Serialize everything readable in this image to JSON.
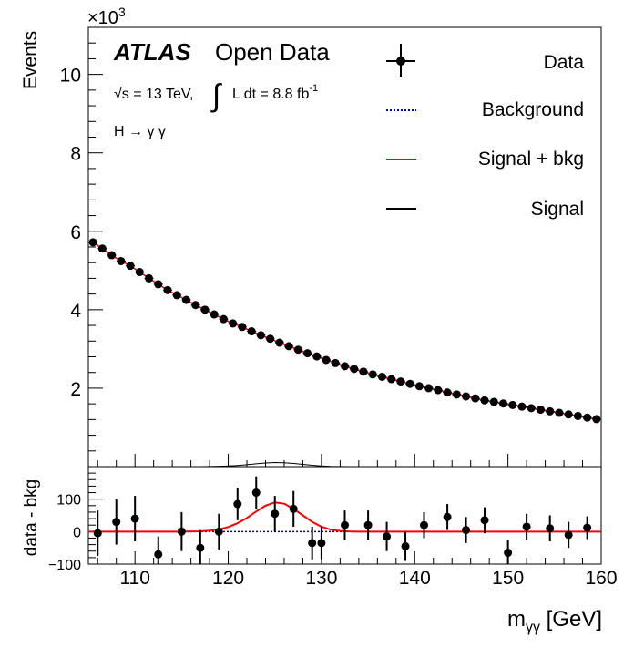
{
  "chart_data": [
    {
      "type": "scatter",
      "panel": "main",
      "ylabel": "Events",
      "y_multiplier_label": "×10",
      "y_multiplier_exp": "3",
      "xlim": [
        105,
        160
      ],
      "ylim": [
        0,
        11200
      ],
      "y_ticks": [
        2,
        4,
        6,
        8,
        10
      ],
      "atlas_label": "ATLAS",
      "open_data_label": "Open Data",
      "energy_label": "√s = 13 TeV,",
      "lumi_label": "L dt = 8.8 fb",
      "lumi_exp": "-1",
      "process_label": "H → γ γ",
      "legend": [
        "Data",
        "Background",
        "Signal + bkg",
        "Signal"
      ],
      "legend_position": "top-right",
      "series": [
        {
          "name": "Data",
          "x": [
            105.5,
            106.5,
            107.5,
            108.5,
            109.5,
            110.5,
            111.5,
            112.5,
            113.5,
            114.5,
            115.5,
            116.5,
            117.5,
            118.5,
            119.5,
            120.5,
            121.5,
            122.5,
            123.5,
            124.5,
            125.5,
            126.5,
            127.5,
            128.5,
            129.5,
            130.5,
            131.5,
            132.5,
            133.5,
            134.5,
            135.5,
            136.5,
            137.5,
            138.5,
            139.5,
            140.5,
            141.5,
            142.5,
            143.5,
            144.5,
            145.5,
            146.5,
            147.5,
            148.5,
            149.5,
            150.5,
            151.5,
            152.5,
            153.5,
            154.5,
            155.5,
            156.5,
            157.5,
            158.5,
            159.5
          ],
          "y": [
            5720,
            5560,
            5390,
            5240,
            5120,
            4960,
            4800,
            4650,
            4500,
            4370,
            4250,
            4120,
            4000,
            3880,
            3760,
            3650,
            3560,
            3450,
            3350,
            3260,
            3160,
            3070,
            2980,
            2890,
            2810,
            2720,
            2640,
            2560,
            2490,
            2420,
            2350,
            2290,
            2230,
            2170,
            2110,
            2050,
            2000,
            1950,
            1890,
            1840,
            1790,
            1740,
            1690,
            1650,
            1610,
            1570,
            1530,
            1490,
            1450,
            1410,
            1370,
            1330,
            1290,
            1250,
            1210
          ]
        },
        {
          "name": "Background",
          "style": "dotted",
          "color": "#0000cc"
        },
        {
          "name": "Signal + bkg",
          "color": "#ff0000"
        },
        {
          "name": "Signal",
          "color": "#000000"
        }
      ]
    },
    {
      "type": "scatter",
      "panel": "ratio",
      "xlabel": "m",
      "xlabel_sub": "γγ",
      "xlabel_unit": "[GeV]",
      "ylabel": "data - bkg",
      "xlim": [
        105,
        160
      ],
      "ylim": [
        -100,
        200
      ],
      "x_ticks": [
        110,
        120,
        130,
        140,
        150,
        160
      ],
      "y_ticks": [
        -100,
        0,
        100
      ],
      "series": [
        {
          "name": "Data",
          "x": [
            106,
            108,
            110,
            112.5,
            115,
            117,
            119,
            121,
            123,
            125,
            127,
            129,
            130,
            132.5,
            135,
            137,
            139,
            141,
            143.5,
            145.5,
            147.5,
            150,
            152,
            154.5,
            156.5,
            158.5
          ],
          "y": [
            -5,
            30,
            40,
            -70,
            0,
            -50,
            0,
            85,
            120,
            55,
            70,
            -35,
            -35,
            20,
            20,
            -15,
            -45,
            20,
            45,
            5,
            35,
            -65,
            15,
            10,
            -10,
            12
          ],
          "yerr": [
            70,
            70,
            70,
            55,
            60,
            55,
            55,
            50,
            50,
            55,
            55,
            50,
            50,
            45,
            45,
            45,
            45,
            40,
            40,
            40,
            40,
            40,
            40,
            40,
            40,
            35
          ]
        },
        {
          "name": "Signal",
          "color": "#ff0000",
          "x": [
            115,
            116,
            117,
            118,
            119,
            120,
            121,
            122,
            123,
            124,
            125,
            126,
            127,
            128,
            129,
            130,
            131,
            132,
            133,
            134
          ],
          "y": [
            0,
            0.5,
            1,
            3,
            7,
            14,
            26,
            42,
            62,
            80,
            90,
            86,
            70,
            50,
            30,
            15,
            6,
            2,
            0.5,
            0
          ]
        }
      ]
    }
  ]
}
